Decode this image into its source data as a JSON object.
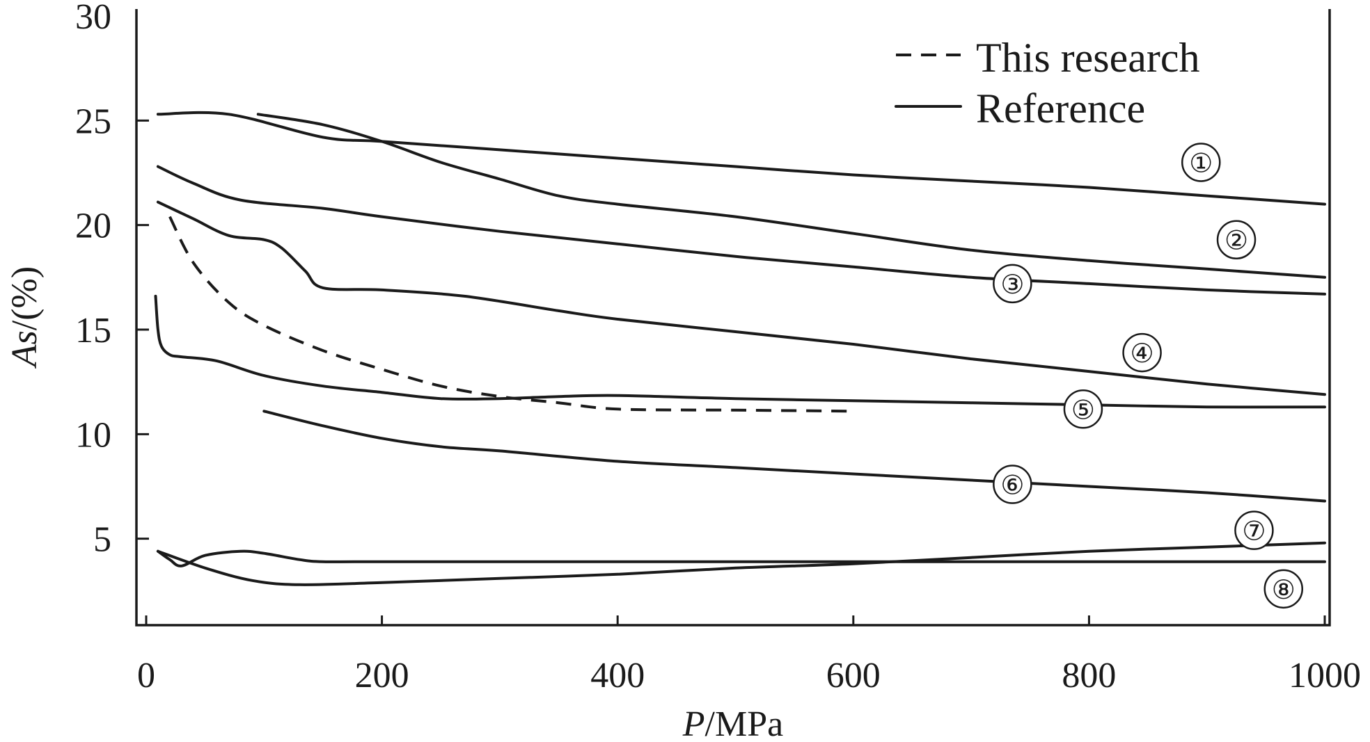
{
  "chart_data": {
    "type": "line",
    "title": "",
    "xlabel": {
      "italic": "P",
      "rest": "/MPa"
    },
    "ylabel": {
      "italic": "As",
      "rest": "/(%)"
    },
    "xlim": [
      0,
      1000
    ],
    "ylim": [
      0,
      30
    ],
    "xticks": [
      0,
      200,
      400,
      600,
      800,
      1000
    ],
    "xtick_labels": [
      "0",
      "200",
      "400",
      "600",
      "800",
      "1000"
    ],
    "yticks": [
      5,
      10,
      15,
      20,
      25,
      30
    ],
    "ytick_labels": [
      "5",
      "10",
      "15",
      "20",
      "25",
      "30"
    ],
    "legend": [
      {
        "label": "This research",
        "style": "dashed"
      },
      {
        "label": "Reference",
        "style": "solid"
      }
    ],
    "series": [
      {
        "name": "This research",
        "style": "dashed",
        "x": [
          20,
          40,
          70,
          100,
          150,
          200,
          250,
          300,
          350,
          400,
          500,
          600
        ],
        "y": [
          20.4,
          18.2,
          16.3,
          15.2,
          14.0,
          13.1,
          12.3,
          11.8,
          11.5,
          11.2,
          11.15,
          11.1
        ]
      },
      {
        "name": "Reference 1",
        "marker": "①",
        "marker_x": 895,
        "marker_y": 23.0,
        "style": "solid",
        "x": [
          10,
          70,
          150,
          200,
          300,
          400,
          500,
          600,
          700,
          800,
          900,
          1000
        ],
        "y": [
          25.3,
          25.3,
          24.2,
          24.0,
          23.6,
          23.2,
          22.8,
          22.4,
          22.1,
          21.8,
          21.4,
          21.0
        ]
      },
      {
        "name": "Reference 2",
        "marker": "②",
        "marker_x": 925,
        "marker_y": 19.3,
        "style": "solid",
        "x": [
          95,
          150,
          200,
          250,
          300,
          350,
          400,
          500,
          600,
          700,
          800,
          900,
          1000
        ],
        "y": [
          25.3,
          24.8,
          24.0,
          23.0,
          22.2,
          21.4,
          21.0,
          20.4,
          19.6,
          18.8,
          18.3,
          17.9,
          17.5
        ]
      },
      {
        "name": "Reference 3",
        "marker": "③",
        "marker_x": 735,
        "marker_y": 17.2,
        "style": "solid",
        "x": [
          10,
          40,
          80,
          150,
          200,
          300,
          400,
          500,
          600,
          700,
          800,
          900,
          1000
        ],
        "y": [
          22.8,
          22.0,
          21.2,
          20.8,
          20.4,
          19.7,
          19.1,
          18.5,
          18.0,
          17.5,
          17.2,
          16.9,
          16.7
        ]
      },
      {
        "name": "Reference 4",
        "marker": "④",
        "marker_x": 845,
        "marker_y": 13.9,
        "style": "solid",
        "x": [
          10,
          40,
          70,
          100,
          115,
          135,
          150,
          200,
          270,
          350,
          400,
          500,
          600,
          700,
          800,
          900,
          1000
        ],
        "y": [
          21.1,
          20.3,
          19.5,
          19.3,
          18.9,
          17.8,
          17.0,
          16.9,
          16.6,
          15.9,
          15.5,
          14.9,
          14.3,
          13.6,
          13.0,
          12.4,
          11.9
        ]
      },
      {
        "name": "Reference 5",
        "marker": "⑤",
        "marker_x": 795,
        "marker_y": 11.2,
        "style": "solid",
        "x": [
          8,
          10,
          13,
          20,
          30,
          60,
          100,
          150,
          200,
          250,
          300,
          350,
          400,
          500,
          600,
          700,
          800,
          900,
          1000
        ],
        "y": [
          16.6,
          15.0,
          14.2,
          13.8,
          13.7,
          13.5,
          12.8,
          12.3,
          12.0,
          11.7,
          11.7,
          11.8,
          11.85,
          11.7,
          11.6,
          11.5,
          11.4,
          11.3,
          11.3
        ]
      },
      {
        "name": "Reference 6",
        "marker": "⑥",
        "marker_x": 735,
        "marker_y": 7.6,
        "style": "solid",
        "x": [
          100,
          150,
          200,
          250,
          300,
          400,
          500,
          600,
          700,
          800,
          900,
          1000
        ],
        "y": [
          11.1,
          10.4,
          9.8,
          9.4,
          9.2,
          8.7,
          8.4,
          8.1,
          7.8,
          7.5,
          7.2,
          6.8
        ]
      },
      {
        "name": "Reference 7",
        "marker": "⑦",
        "marker_x": 940,
        "marker_y": 5.4,
        "style": "solid",
        "x": [
          10,
          50,
          90,
          130,
          200,
          300,
          400,
          500,
          600,
          700,
          800,
          900,
          1000
        ],
        "y": [
          4.4,
          3.6,
          3.0,
          2.8,
          2.9,
          3.1,
          3.3,
          3.6,
          3.8,
          4.1,
          4.4,
          4.6,
          4.8
        ]
      },
      {
        "name": "Reference 8",
        "marker": "⑧",
        "marker_x": 965,
        "marker_y": 2.6,
        "style": "solid",
        "x": [
          10,
          20,
          30,
          50,
          80,
          100,
          130,
          150,
          200,
          400,
          600,
          800,
          1000
        ],
        "y": [
          4.4,
          4.0,
          3.7,
          4.2,
          4.4,
          4.3,
          4.0,
          3.9,
          3.9,
          3.9,
          3.9,
          3.9,
          3.9
        ]
      }
    ]
  }
}
